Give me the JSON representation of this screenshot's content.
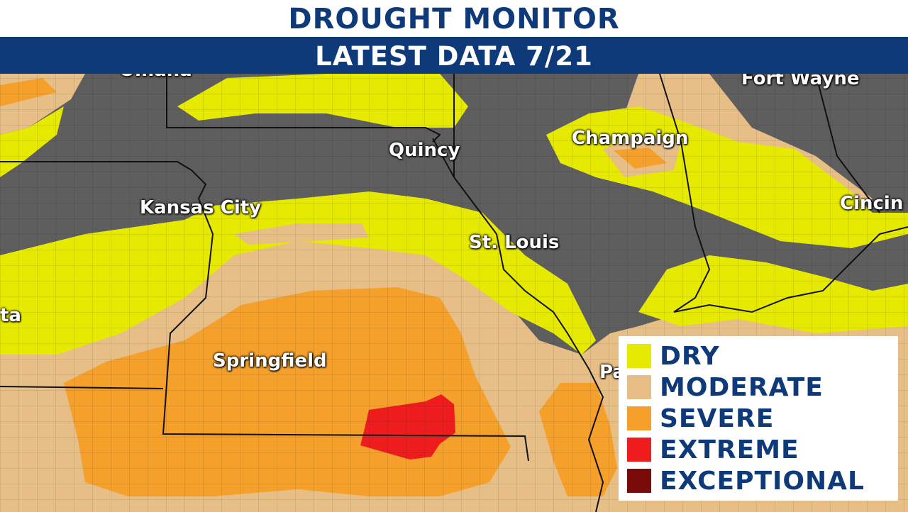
{
  "header": {
    "title": "DROUGHT MONITOR",
    "subtitle": "LATEST DATA 7/21"
  },
  "cities": [
    {
      "name": "Omaha"
    },
    {
      "name": "Fort Wayne"
    },
    {
      "name": "Champaign"
    },
    {
      "name": "Quincy"
    },
    {
      "name": "Kansas City"
    },
    {
      "name": "St. Louis"
    },
    {
      "name": "Cincin"
    },
    {
      "name": "ta"
    },
    {
      "name": "Springfield"
    },
    {
      "name": "Pa"
    }
  ],
  "legend": {
    "items": [
      {
        "label": "DRY",
        "color": "#e6ea00"
      },
      {
        "label": "MODERATE",
        "color": "#e7bf86"
      },
      {
        "label": "SEVERE",
        "color": "#f5a02a"
      },
      {
        "label": "EXTREME",
        "color": "#ee1c1c"
      },
      {
        "label": "EXCEPTIONAL",
        "color": "#7a0b0b"
      }
    ]
  },
  "colors": {
    "no_drought": "#5e5e5e",
    "header_blue": "#0f3a7a"
  }
}
